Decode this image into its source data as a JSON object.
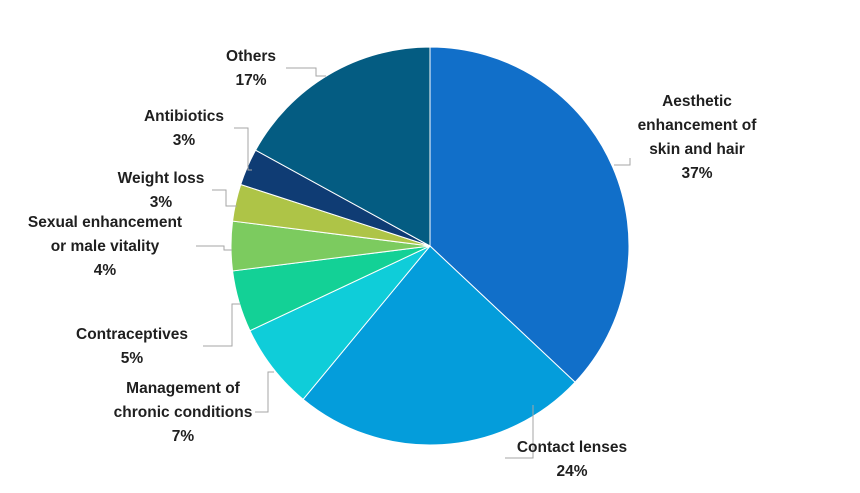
{
  "chart_data": {
    "type": "pie",
    "title": "",
    "start_angle_deg": 0,
    "direction": "clockwise",
    "slices": [
      {
        "label_lines": [
          "Aesthetic",
          "enhancement of",
          "skin and hair"
        ],
        "value_label": "37%",
        "value": 37,
        "color": "#116fc9"
      },
      {
        "label_lines": [
          "Contact lenses"
        ],
        "value_label": "24%",
        "value": 24,
        "color": "#049ddb"
      },
      {
        "label_lines": [
          "Management of",
          "chronic conditions"
        ],
        "value_label": "7%",
        "value": 7,
        "color": "#0fcdd9"
      },
      {
        "label_lines": [
          "Contraceptives"
        ],
        "value_label": "5%",
        "value": 5,
        "color": "#13d196"
      },
      {
        "label_lines": [
          "Sexual enhancement",
          "or male vitality"
        ],
        "value_label": "4%",
        "value": 4,
        "color": "#7ccb5f"
      },
      {
        "label_lines": [
          "Weight loss"
        ],
        "value_label": "3%",
        "value": 3,
        "color": "#aec447"
      },
      {
        "label_lines": [
          "Antibiotics"
        ],
        "value_label": "3%",
        "value": 3,
        "color": "#0f3c74"
      },
      {
        "label_lines": [
          "Others"
        ],
        "value_label": "17%",
        "value": 17,
        "color": "#045c82"
      }
    ]
  }
}
